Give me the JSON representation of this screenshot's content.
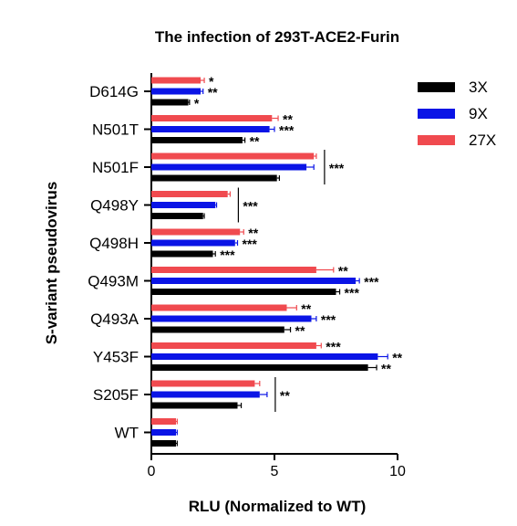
{
  "chart_data": {
    "type": "bar",
    "orientation": "horizontal",
    "title": "The infection of 293T-ACE2-Furin",
    "xlabel": "RLU (Normalized to WT)",
    "ylabel": "S-variant pseudovirus",
    "xlim": [
      0,
      10
    ],
    "xticks": [
      "0",
      "5",
      "10"
    ],
    "grid": false,
    "legend_position": "top-right",
    "categories": [
      "D614G",
      "N501T",
      "N501F",
      "Q498Y",
      "Q498H",
      "Q493M",
      "Q493A",
      "Y453F",
      "S205F",
      "WT"
    ],
    "series": [
      {
        "name": "3X",
        "color": "#000000",
        "values": [
          1.5,
          3.7,
          5.1,
          2.1,
          2.5,
          7.5,
          5.4,
          8.8,
          3.5,
          1.0
        ],
        "errors": [
          0.05,
          0.1,
          0.1,
          0.05,
          0.1,
          0.15,
          0.25,
          0.35,
          0.15,
          0.05
        ],
        "sig": [
          "*",
          "**",
          "",
          "",
          "***",
          "***",
          "**",
          "**",
          "",
          ""
        ]
      },
      {
        "name": "9X",
        "color": "#0a14e6",
        "values": [
          2.0,
          4.8,
          6.3,
          2.6,
          3.4,
          8.3,
          6.5,
          9.2,
          4.4,
          1.0
        ],
        "errors": [
          0.1,
          0.2,
          0.3,
          0.05,
          0.1,
          0.15,
          0.2,
          0.4,
          0.3,
          0.05
        ],
        "sig": [
          "**",
          "***",
          "",
          "",
          "***",
          "***",
          "***",
          "**",
          "",
          ""
        ]
      },
      {
        "name": "27X",
        "color": "#f04a4f",
        "values": [
          2.0,
          4.9,
          6.6,
          3.1,
          3.6,
          6.7,
          5.5,
          6.7,
          4.2,
          1.0
        ],
        "errors": [
          0.15,
          0.25,
          0.1,
          0.1,
          0.15,
          0.7,
          0.4,
          0.2,
          0.2,
          0.05
        ],
        "sig": [
          "*",
          "**",
          "",
          "",
          "**",
          "**",
          "**",
          "***",
          "",
          ""
        ]
      }
    ],
    "group_sig": [
      "",
      "",
      "***",
      "***",
      "",
      "",
      "",
      "",
      "**",
      ""
    ]
  }
}
